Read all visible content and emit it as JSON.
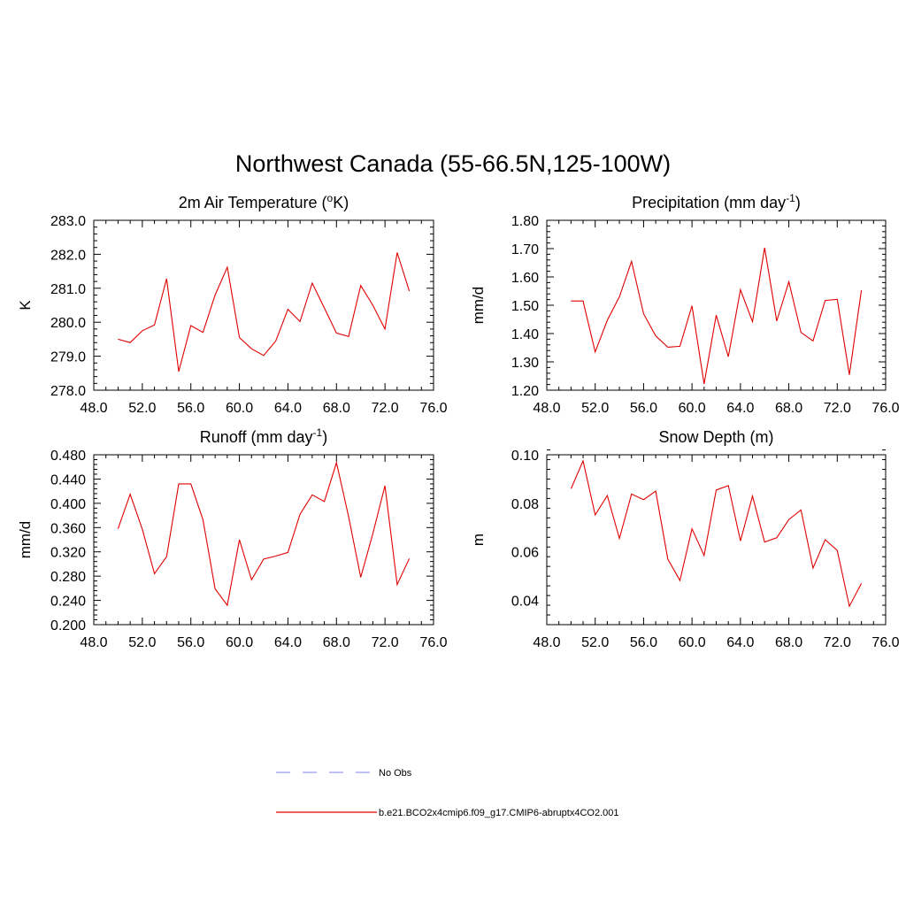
{
  "title": "Northwest Canada (55-66.5N,125-100W)",
  "legend": {
    "obs_label": "No Obs",
    "obs_color": "#9b9bf0",
    "model_label": "b.e21.BCO2x4cmip6.f09_g17.CMIP6-abruptx4CO2.001",
    "model_color": "#e00000"
  },
  "chart_data": [
    {
      "type": "line",
      "title_pre": "2m Air Temperature (",
      "title_sup": "o",
      "title_post": "K)",
      "ylabel": "K",
      "xlim": [
        48,
        76
      ],
      "x_ticks": [
        48,
        52,
        56,
        60,
        64,
        68,
        72,
        76
      ],
      "x_tick_labels": [
        "48.0",
        "52.0",
        "56.0",
        "60.0",
        "64.0",
        "68.0",
        "72.0",
        "76.0"
      ],
      "ylim": [
        278.0,
        283.0
      ],
      "y_ticks": [
        278.0,
        279.0,
        280.0,
        281.0,
        282.0,
        283.0
      ],
      "y_tick_labels": [
        "278.0",
        "279.0",
        "280.0",
        "281.0",
        "282.0",
        "283.0"
      ],
      "x": [
        50,
        51,
        52,
        53,
        54,
        55,
        56,
        57,
        58,
        59,
        60,
        61,
        62,
        63,
        64,
        65,
        66,
        67,
        68,
        69,
        70,
        71,
        72,
        73,
        74
      ],
      "series": [
        {
          "values": [
            279.5,
            279.4,
            279.75,
            279.92,
            281.28,
            278.55,
            279.9,
            279.7,
            280.8,
            281.62,
            279.55,
            279.22,
            279.02,
            279.45,
            280.38,
            280.02,
            281.15,
            280.42,
            279.68,
            279.58,
            281.08,
            280.5,
            279.8,
            282.05,
            280.92
          ]
        }
      ]
    },
    {
      "type": "line",
      "title_pre": "Precipitation (mm day",
      "title_sup": "-1",
      "title_post": ")",
      "ylabel": "mm/d",
      "xlim": [
        48,
        76
      ],
      "x_ticks": [
        48,
        52,
        56,
        60,
        64,
        68,
        72,
        76
      ],
      "x_tick_labels": [
        "48.0",
        "52.0",
        "56.0",
        "60.0",
        "64.0",
        "68.0",
        "72.0",
        "76.0"
      ],
      "ylim": [
        1.2,
        1.8
      ],
      "y_ticks": [
        1.2,
        1.3,
        1.4,
        1.5,
        1.6,
        1.7,
        1.8
      ],
      "y_tick_labels": [
        "1.20",
        "1.30",
        "1.40",
        "1.50",
        "1.60",
        "1.70",
        "1.80"
      ],
      "x": [
        50,
        51,
        52,
        53,
        54,
        55,
        56,
        57,
        58,
        59,
        60,
        61,
        62,
        63,
        64,
        65,
        66,
        67,
        68,
        69,
        70,
        71,
        72,
        73,
        74
      ],
      "series": [
        {
          "values": [
            1.515,
            1.515,
            1.335,
            1.447,
            1.53,
            1.655,
            1.47,
            1.392,
            1.352,
            1.355,
            1.498,
            1.222,
            1.465,
            1.318,
            1.555,
            1.442,
            1.703,
            1.444,
            1.583,
            1.404,
            1.374,
            1.517,
            1.521,
            1.254,
            1.553
          ]
        }
      ]
    },
    {
      "type": "line",
      "title_pre": "Runoff (mm day",
      "title_sup": "-1",
      "title_post": ")",
      "ylabel": "mm/d",
      "xlim": [
        48,
        76
      ],
      "x_ticks": [
        48,
        52,
        56,
        60,
        64,
        68,
        72,
        76
      ],
      "x_tick_labels": [
        "48.0",
        "52.0",
        "56.0",
        "60.0",
        "64.0",
        "68.0",
        "72.0",
        "76.0"
      ],
      "ylim": [
        0.2,
        0.48
      ],
      "y_ticks": [
        0.2,
        0.24,
        0.28,
        0.32,
        0.36,
        0.4,
        0.44,
        0.48
      ],
      "y_tick_labels": [
        "0.200",
        "0.240",
        "0.280",
        "0.320",
        "0.360",
        "0.400",
        "0.440",
        "0.480"
      ],
      "x": [
        50,
        51,
        52,
        53,
        54,
        55,
        56,
        57,
        58,
        59,
        60,
        61,
        62,
        63,
        64,
        65,
        66,
        67,
        68,
        69,
        70,
        71,
        72,
        73,
        74
      ],
      "series": [
        {
          "values": [
            0.358,
            0.415,
            0.357,
            0.284,
            0.312,
            0.432,
            0.432,
            0.373,
            0.259,
            0.232,
            0.34,
            0.274,
            0.308,
            0.313,
            0.319,
            0.382,
            0.414,
            0.403,
            0.467,
            0.378,
            0.278,
            0.35,
            0.429,
            0.266,
            0.309
          ]
        }
      ]
    },
    {
      "type": "line",
      "title_pre": "Snow Depth (m)",
      "title_sup": "",
      "title_post": "",
      "ylabel": "m",
      "xlim": [
        48,
        76
      ],
      "x_ticks": [
        48,
        52,
        56,
        60,
        64,
        68,
        72,
        76
      ],
      "x_tick_labels": [
        "48.0",
        "52.0",
        "56.0",
        "60.0",
        "64.0",
        "68.0",
        "72.0",
        "76.0"
      ],
      "ylim": [
        0.03,
        0.1
      ],
      "y_ticks": [
        0.04,
        0.06,
        0.08,
        0.1
      ],
      "y_tick_labels": [
        "0.04",
        "0.06",
        "0.08",
        "0.10"
      ],
      "x": [
        50,
        51,
        52,
        53,
        54,
        55,
        56,
        57,
        58,
        59,
        60,
        61,
        62,
        63,
        64,
        65,
        66,
        67,
        68,
        69,
        70,
        71,
        72,
        73,
        74
      ],
      "series": [
        {
          "values": [
            0.086,
            0.0975,
            0.0752,
            0.0832,
            0.0655,
            0.0838,
            0.0815,
            0.085,
            0.057,
            0.0482,
            0.0695,
            0.0585,
            0.0855,
            0.0873,
            0.0645,
            0.083,
            0.064,
            0.0658,
            0.0733,
            0.0773,
            0.0533,
            0.065,
            0.0606,
            0.0376,
            0.047
          ]
        }
      ]
    }
  ]
}
